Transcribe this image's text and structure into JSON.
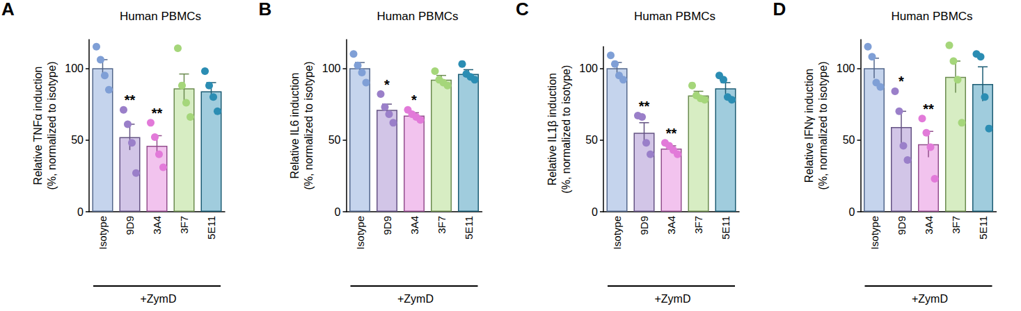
{
  "chart_data": [
    {
      "panel": "A",
      "type": "bar",
      "title": "Human PBMCs",
      "ylabel": "Relative TNFα induction\n(%, normalized to isotype)",
      "categories": [
        "Isotype",
        "9D9",
        "3A4",
        "3F7",
        "5E11"
      ],
      "values": [
        100,
        52,
        46,
        86,
        84
      ],
      "errors": [
        6,
        9,
        7,
        10,
        6
      ],
      "points": [
        [
          115,
          106,
          95,
          85
        ],
        [
          71,
          61,
          48,
          27
        ],
        [
          62,
          52,
          40,
          31
        ],
        [
          114,
          88,
          76,
          66
        ],
        [
          98,
          88,
          80,
          70
        ]
      ],
      "annotations": [
        null,
        "**",
        "**",
        null,
        null
      ],
      "group_label": "+ZymD",
      "colors": [
        "#7f9fd6",
        "#9a7fc9",
        "#e27ad9",
        "#a5d67a",
        "#2b8db3"
      ],
      "ylim": [
        0,
        120
      ],
      "yticks": [
        0,
        50,
        100
      ],
      "grid": false
    },
    {
      "panel": "B",
      "type": "bar",
      "title": "Human PBMCs",
      "ylabel": "Relative IL6 induction\n(%, normalized to isotype)",
      "categories": [
        "Isotype",
        "9D9",
        "3A4",
        "3F7",
        "5E11"
      ],
      "values": [
        100,
        71,
        67,
        92,
        96
      ],
      "errors": [
        4,
        4,
        2,
        3,
        3
      ],
      "points": [
        [
          110,
          102,
          97,
          90
        ],
        [
          82,
          73,
          68,
          62
        ],
        [
          71,
          68,
          66,
          64
        ],
        [
          98,
          92,
          90,
          88
        ],
        [
          103,
          96,
          94,
          92
        ]
      ],
      "annotations": [
        null,
        "*",
        "*",
        null,
        null
      ],
      "group_label": "+ZymD",
      "colors": [
        "#7f9fd6",
        "#9a7fc9",
        "#e27ad9",
        "#a5d67a",
        "#2b8db3"
      ],
      "ylim": [
        0,
        120
      ],
      "yticks": [
        0,
        50,
        100
      ],
      "grid": false
    },
    {
      "panel": "C",
      "type": "bar",
      "title": "Human PBMCs",
      "ylabel": "Relative IL1β induction\n(%, normalized to isotype)",
      "categories": [
        "Isotype",
        "9D9",
        "3A4",
        "3F7",
        "5E11"
      ],
      "values": [
        100,
        55,
        44,
        81,
        86
      ],
      "errors": [
        4,
        7,
        2,
        3,
        4
      ],
      "points": [
        [
          109,
          103,
          95,
          92
        ],
        [
          67,
          66,
          48,
          40
        ],
        [
          48,
          46,
          43,
          40
        ],
        [
          88,
          81,
          79,
          78
        ],
        [
          95,
          92,
          80,
          78
        ]
      ],
      "annotations": [
        null,
        "**",
        "**",
        null,
        null
      ],
      "group_label": "+ZymD",
      "colors": [
        "#7f9fd6",
        "#9a7fc9",
        "#e27ad9",
        "#a5d67a",
        "#2b8db3"
      ],
      "ylim": [
        0,
        115
      ],
      "yticks": [
        0,
        50,
        100
      ],
      "grid": false
    },
    {
      "panel": "D",
      "type": "bar",
      "title": "Human PBMCs",
      "ylabel": "Relative IFNγ induction\n(%, normalized to isotype)",
      "categories": [
        "Isotype",
        "9D9",
        "3A4",
        "3F7",
        "5E11"
      ],
      "values": [
        100,
        59,
        47,
        94,
        89
      ],
      "errors": [
        7,
        11,
        9,
        11,
        12
      ],
      "points": [
        [
          115,
          108,
          90,
          87
        ],
        [
          84,
          70,
          46,
          36
        ],
        [
          65,
          55,
          45,
          23
        ],
        [
          116,
          105,
          92,
          62
        ],
        [
          110,
          108,
          80,
          58
        ]
      ],
      "annotations": [
        null,
        "*",
        "**",
        null,
        null
      ],
      "group_label": "+ZymD",
      "colors": [
        "#7f9fd6",
        "#9a7fc9",
        "#e27ad9",
        "#a5d67a",
        "#2b8db3"
      ],
      "ylim": [
        0,
        120
      ],
      "yticks": [
        0,
        50,
        100
      ],
      "grid": false
    }
  ]
}
